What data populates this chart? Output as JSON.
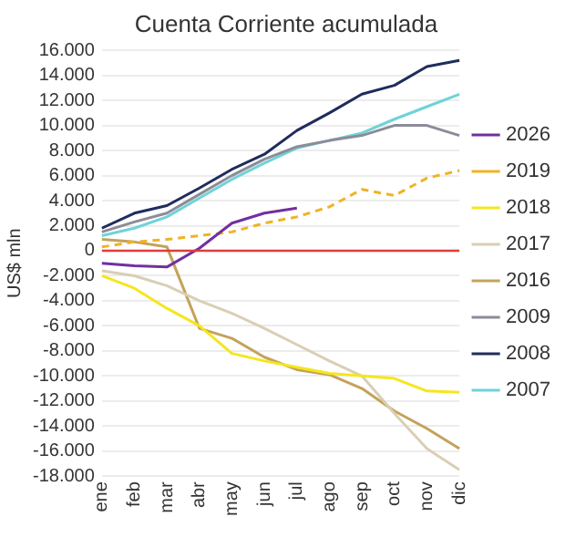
{
  "chart_data": {
    "type": "line",
    "title": "Cuenta Corriente acumulada",
    "ylabel": "US$ mln",
    "categories": [
      "ene",
      "feb",
      "mar",
      "abr",
      "may",
      "jun",
      "jul",
      "ago",
      "sep",
      "oct",
      "nov",
      "dic"
    ],
    "ylim": [
      -18000,
      16000
    ],
    "yticks": [
      {
        "value": -18000,
        "label": "-18.000"
      },
      {
        "value": -16000,
        "label": "-16.000"
      },
      {
        "value": -14000,
        "label": "-14.000"
      },
      {
        "value": -12000,
        "label": "-12.000"
      },
      {
        "value": -10000,
        "label": "-10.000"
      },
      {
        "value": -8000,
        "label": "-8.000"
      },
      {
        "value": -6000,
        "label": "-6.000"
      },
      {
        "value": -4000,
        "label": "-4.000"
      },
      {
        "value": -2000,
        "label": "-2.000"
      },
      {
        "value": 0,
        "label": "0"
      },
      {
        "value": 2000,
        "label": "2.000"
      },
      {
        "value": 4000,
        "label": "4.000"
      },
      {
        "value": 6000,
        "label": "6.000"
      },
      {
        "value": 8000,
        "label": "8.000"
      },
      {
        "value": 10000,
        "label": "10.000"
      },
      {
        "value": 12000,
        "label": "12.000"
      },
      {
        "value": 14000,
        "label": "14.000"
      },
      {
        "value": 16000,
        "label": "16.000"
      }
    ],
    "grid": "y",
    "legend": "right",
    "marker": "none",
    "ref_lines": [
      {
        "axis": "y",
        "value": 0,
        "color": "#e03c3c"
      }
    ],
    "series": [
      {
        "name": "2026",
        "color": "#7030a0",
        "values": [
          -1000,
          -1200,
          -1300,
          200,
          2200,
          3000,
          3400,
          null,
          null,
          null,
          null,
          null
        ]
      },
      {
        "name": "2019",
        "color": "#f0b323",
        "line_style": "dashed",
        "values": [
          300,
          700,
          900,
          1200,
          1500,
          2200,
          2700,
          3500,
          4900,
          4400,
          5800,
          6400
        ]
      },
      {
        "name": "2018",
        "color": "#f5e61e",
        "values": [
          -2000,
          -3000,
          -4600,
          -6000,
          -8200,
          -8800,
          -9300,
          -9800,
          -10000,
          -10200,
          -11200,
          -11300
        ]
      },
      {
        "name": "2017",
        "color": "#d9cfb4",
        "values": [
          -1600,
          -2000,
          -2800,
          -4000,
          -5000,
          -6200,
          -7500,
          -8800,
          -10000,
          -13000,
          -15800,
          -17500
        ]
      },
      {
        "name": "2016",
        "color": "#c4a25a",
        "values": [
          900,
          700,
          300,
          -6200,
          -7000,
          -8500,
          -9500,
          -9900,
          -11000,
          -12800,
          -14200,
          -15800
        ]
      },
      {
        "name": "2009",
        "color": "#8c8c99",
        "values": [
          1500,
          2300,
          3000,
          4500,
          6000,
          7300,
          8300,
          8800,
          9200,
          10000,
          10000,
          9200
        ]
      },
      {
        "name": "2008",
        "color": "#1f2d5c",
        "values": [
          1800,
          3000,
          3600,
          5000,
          6500,
          7700,
          9600,
          11000,
          12500,
          13200,
          14700,
          15200
        ]
      },
      {
        "name": "2007",
        "color": "#6fd3d8",
        "values": [
          1200,
          1800,
          2700,
          4200,
          5700,
          7000,
          8200,
          8800,
          9400,
          10500,
          11500,
          12500
        ]
      }
    ]
  }
}
